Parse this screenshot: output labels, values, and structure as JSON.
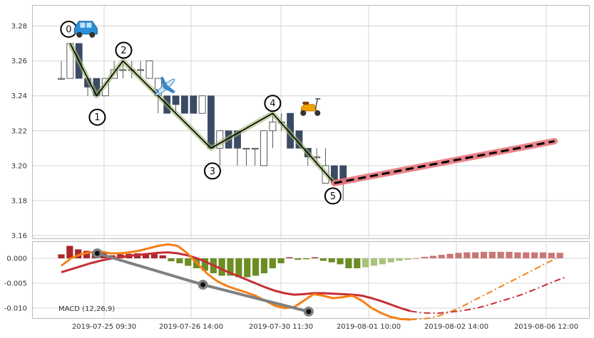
{
  "chart_data": [
    {
      "type": "candlestick",
      "panel": "price",
      "ylim": [
        3.16,
        3.29
      ],
      "y_ticks": [
        "3.16",
        "3.18",
        "3.20",
        "3.22",
        "3.24",
        "3.26",
        "3.28"
      ],
      "x_count": 33,
      "grid": true,
      "candles": [
        {
          "o": 3.25,
          "h": 3.26,
          "l": 3.25,
          "c": 3.25
        },
        {
          "o": 3.25,
          "h": 3.27,
          "l": 3.25,
          "c": 3.27
        },
        {
          "o": 3.27,
          "h": 3.27,
          "l": 3.25,
          "c": 3.25
        },
        {
          "o": 3.25,
          "h": 3.25,
          "l": 3.24,
          "c": 3.245
        },
        {
          "o": 3.25,
          "h": 3.25,
          "l": 3.24,
          "c": 3.24
        },
        {
          "o": 3.24,
          "h": 3.25,
          "l": 3.24,
          "c": 3.25
        },
        {
          "o": 3.25,
          "h": 3.26,
          "l": 3.25,
          "c": 3.255
        },
        {
          "o": 3.255,
          "h": 3.26,
          "l": 3.25,
          "c": 3.255
        },
        {
          "o": 3.255,
          "h": 3.26,
          "l": 3.25,
          "c": 3.255
        },
        {
          "o": 3.255,
          "h": 3.26,
          "l": 3.25,
          "c": 3.255
        },
        {
          "o": 3.25,
          "h": 3.26,
          "l": 3.25,
          "c": 3.26
        },
        {
          "o": 3.24,
          "h": 3.25,
          "l": 3.23,
          "c": 3.25
        },
        {
          "o": 3.24,
          "h": 3.24,
          "l": 3.23,
          "c": 3.23
        },
        {
          "o": 3.24,
          "h": 3.24,
          "l": 3.23,
          "c": 3.235
        },
        {
          "o": 3.24,
          "h": 3.24,
          "l": 3.23,
          "c": 3.23
        },
        {
          "o": 3.24,
          "h": 3.24,
          "l": 3.23,
          "c": 3.23
        },
        {
          "o": 3.23,
          "h": 3.24,
          "l": 3.23,
          "c": 3.24
        },
        {
          "o": 3.24,
          "h": 3.24,
          "l": 3.21,
          "c": 3.21
        },
        {
          "o": 3.21,
          "h": 3.22,
          "l": 3.2,
          "c": 3.22
        },
        {
          "o": 3.22,
          "h": 3.22,
          "l": 3.21,
          "c": 3.21
        },
        {
          "o": 3.22,
          "h": 3.22,
          "l": 3.2,
          "c": 3.21
        },
        {
          "o": 3.21,
          "h": 3.21,
          "l": 3.2,
          "c": 3.21
        },
        {
          "o": 3.21,
          "h": 3.21,
          "l": 3.2,
          "c": 3.21
        },
        {
          "o": 3.2,
          "h": 3.22,
          "l": 3.2,
          "c": 3.22
        },
        {
          "o": 3.22,
          "h": 3.23,
          "l": 3.21,
          "c": 3.225
        },
        {
          "o": 3.225,
          "h": 3.23,
          "l": 3.22,
          "c": 3.225
        },
        {
          "o": 3.23,
          "h": 3.23,
          "l": 3.21,
          "c": 3.21
        },
        {
          "o": 3.22,
          "h": 3.22,
          "l": 3.21,
          "c": 3.21
        },
        {
          "o": 3.21,
          "h": 3.21,
          "l": 3.2,
          "c": 3.205
        },
        {
          "o": 3.205,
          "h": 3.21,
          "l": 3.2,
          "c": 3.205
        },
        {
          "o": 3.19,
          "h": 3.21,
          "l": 3.19,
          "c": 3.2
        },
        {
          "o": 3.2,
          "h": 3.2,
          "l": 3.19,
          "c": 3.19
        },
        {
          "o": 3.2,
          "h": 3.2,
          "l": 3.18,
          "c": 3.19
        }
      ],
      "zigzag": [
        {
          "label": "0",
          "i": 1,
          "price": 3.27
        },
        {
          "label": "1",
          "i": 4,
          "price": 3.24
        },
        {
          "label": "2",
          "i": 7,
          "price": 3.26
        },
        {
          "label": "3",
          "i": 17,
          "price": 3.21
        },
        {
          "label": "4",
          "i": 24,
          "price": 3.23
        },
        {
          "label": "5",
          "i": 31,
          "price": 3.19
        }
      ],
      "projection": {
        "from": {
          "i": 31,
          "price": 3.19
        },
        "to": {
          "i": 56,
          "price": 3.214
        }
      },
      "icons": [
        {
          "icon": "car-icon",
          "i": 1,
          "price": 3.277
        },
        {
          "icon": "airplane-icon",
          "i": 10.5,
          "price": 3.245
        },
        {
          "icon": "scooter-icon",
          "i": 26.5,
          "price": 3.233
        }
      ],
      "colors": {
        "down_candle": "#3b4a64",
        "zigzag": "#000000",
        "zigzag_glow": "#9bb36a",
        "projection_glow": "#e8777f",
        "projection_line": "#000000"
      }
    },
    {
      "type": "macd",
      "panel": "indicator",
      "label": "MACD (12,26,9)",
      "ylim": [
        -0.012,
        0.0035
      ],
      "y_ticks": [
        "0.000",
        "-0.005",
        "-0.010"
      ],
      "x_ticks": [
        "2019-07-25 09:30",
        "2019-07-26 14:00",
        "2019-07-30 11:30",
        "2019-08-01 10:00",
        "2019-08-02 14:00",
        "2019-08-06 12:00"
      ],
      "histogram": [
        0.0008,
        0.0025,
        0.0018,
        0.0015,
        0.001,
        0.0012,
        0.0006,
        0.0008,
        0.0009,
        0.001,
        0.0008,
        0.001,
        0.0006,
        -0.0006,
        -0.001,
        -0.0015,
        -0.002,
        -0.0025,
        -0.003,
        -0.0035,
        -0.0035,
        -0.0038,
        -0.0038,
        -0.0035,
        -0.003,
        -0.002,
        -0.001,
        0.0002,
        -0.0003,
        -0.0002,
        0.0002,
        -0.0005,
        -0.0008,
        -0.0012,
        -0.002,
        -0.002,
        -0.0018,
        -0.0015,
        -0.0012,
        -0.0008,
        -0.0005,
        -0.0003,
        0.0,
        0.0003,
        0.0005,
        0.0007,
        0.0009,
        0.0011,
        0.0012,
        0.0012,
        0.0013,
        0.0013,
        0.0013,
        0.0013,
        0.0012,
        0.0012,
        0.0012,
        0.0012,
        0.0011,
        0.0011
      ],
      "macd": [
        -0.0015,
        0.0,
        0.0008,
        0.0012,
        0.0014,
        0.001,
        0.001,
        0.0012,
        0.0015,
        0.002,
        0.0025,
        0.0028,
        0.0025,
        0.001,
        -0.001,
        -0.003,
        -0.0045,
        -0.0055,
        -0.0062,
        -0.0068,
        -0.0075,
        -0.0085,
        -0.0095,
        -0.01,
        -0.0098,
        -0.0085,
        -0.0072,
        -0.0075,
        -0.008,
        -0.0078,
        -0.0075,
        -0.0085,
        -0.01,
        -0.011,
        -0.0118,
        -0.0122,
        -0.0123,
        -0.0122,
        -0.012,
        -0.0115,
        -0.0108,
        -0.01,
        -0.009,
        -0.008,
        -0.007,
        -0.006,
        -0.005,
        -0.004,
        -0.003,
        -0.002,
        -0.001,
        0.0
      ],
      "signal": [
        -0.0028,
        -0.0022,
        -0.0016,
        -0.001,
        -0.0005,
        -0.0001,
        0.0002,
        0.0005,
        0.0007,
        0.0009,
        0.0011,
        0.0012,
        0.001,
        0.0006,
        0.0,
        -0.0008,
        -0.0017,
        -0.0026,
        -0.0034,
        -0.0042,
        -0.005,
        -0.0058,
        -0.0065,
        -0.007,
        -0.0073,
        -0.0072,
        -0.007,
        -0.007,
        -0.0071,
        -0.0072,
        -0.0073,
        -0.0075,
        -0.008,
        -0.0086,
        -0.0093,
        -0.01,
        -0.0106,
        -0.0109,
        -0.011,
        -0.011,
        -0.0108,
        -0.0106,
        -0.0103,
        -0.0099,
        -0.0094,
        -0.0088,
        -0.0082,
        -0.0076,
        -0.0069,
        -0.0061,
        -0.0053,
        -0.0045,
        -0.0038
      ],
      "solid_until": 36,
      "divergence": [
        {
          "i": 4,
          "value": 0.001
        },
        {
          "i": 16,
          "value": -0.0053
        },
        {
          "i": 28,
          "value": -0.0107
        }
      ],
      "colors": {
        "hist_pos": "#a7282c",
        "hist_pos_faded": "#c97777",
        "hist_neg": "#6b8e23",
        "hist_neg_faded": "#a9c27c",
        "macd": "#f57f17",
        "signal": "#c62f36",
        "divergence": "#808080"
      }
    }
  ]
}
